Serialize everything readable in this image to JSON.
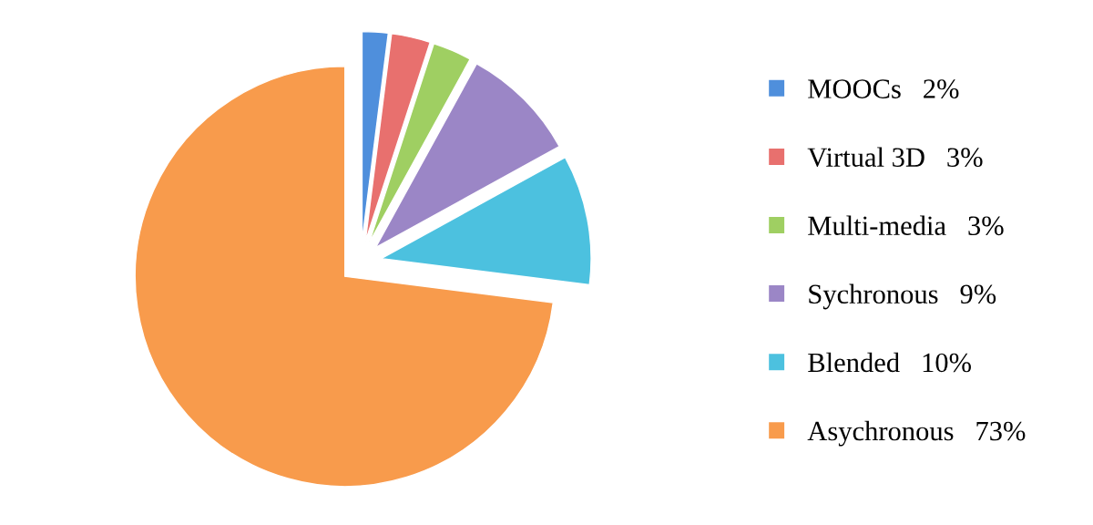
{
  "chart_data": {
    "type": "pie",
    "categories": [
      "MOOCs",
      "Virtual 3D",
      "Multi-media",
      "Sychronous",
      "Blended",
      "Asychronous"
    ],
    "values": [
      2,
      3,
      3,
      9,
      10,
      73
    ],
    "value_labels": [
      "2%",
      "3%",
      "3%",
      "9%",
      "10%",
      "73%"
    ],
    "colors": [
      "#4f8fdc",
      "#e8706e",
      "#9fcf62",
      "#9b86c6",
      "#4cc1df",
      "#f89b4c"
    ],
    "legend": "right"
  }
}
